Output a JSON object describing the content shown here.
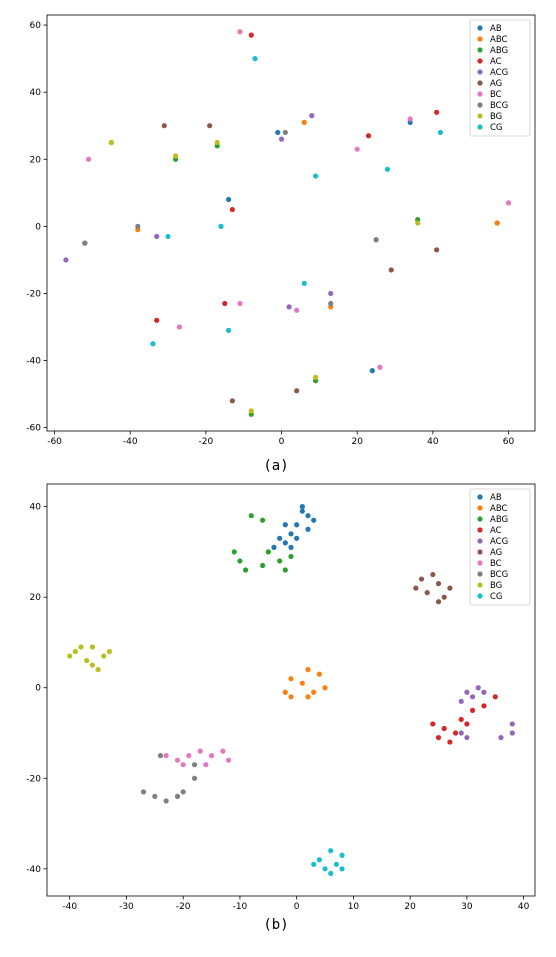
{
  "chart_data": [
    {
      "type": "scatter",
      "caption": "(a)",
      "xlim": [
        -62,
        67
      ],
      "ylim": [
        -61,
        63
      ],
      "xticks": [
        -60,
        -40,
        -20,
        0,
        20,
        40,
        60
      ],
      "yticks": [
        -60,
        -40,
        -20,
        0,
        20,
        40,
        60
      ],
      "grid": false,
      "legend_position": "top-right",
      "series": [
        {
          "name": "AB",
          "color": "#1f77b4",
          "points": [
            [
              -14,
              8
            ],
            [
              -1,
              28
            ],
            [
              34,
              31
            ],
            [
              57,
              1
            ],
            [
              24,
              -43
            ]
          ]
        },
        {
          "name": "ABC",
          "color": "#ff7f0e",
          "points": [
            [
              -52,
              -5
            ],
            [
              -38,
              -1
            ],
            [
              6,
              31
            ],
            [
              13,
              -24
            ],
            [
              25,
              -4
            ],
            [
              9,
              -46
            ],
            [
              57,
              1
            ]
          ]
        },
        {
          "name": "ABG",
          "color": "#2ca02c",
          "points": [
            [
              -45,
              25
            ],
            [
              -28,
              20
            ],
            [
              -17,
              24
            ],
            [
              36,
              2
            ],
            [
              9,
              -46
            ],
            [
              -8,
              -56
            ]
          ]
        },
        {
          "name": "AC",
          "color": "#d62728",
          "points": [
            [
              -8,
              57
            ],
            [
              -13,
              5
            ],
            [
              -15,
              -23
            ],
            [
              -33,
              -28
            ],
            [
              23,
              27
            ],
            [
              41,
              34
            ]
          ]
        },
        {
          "name": "ACG",
          "color": "#9467bd",
          "points": [
            [
              -57,
              -10
            ],
            [
              -33,
              -3
            ],
            [
              0,
              26
            ],
            [
              8,
              33
            ],
            [
              13,
              -20
            ],
            [
              2,
              -24
            ]
          ]
        },
        {
          "name": "AG",
          "color": "#8c564b",
          "points": [
            [
              -31,
              30
            ],
            [
              -19,
              30
            ],
            [
              41,
              -7
            ],
            [
              29,
              -13
            ],
            [
              -13,
              -52
            ],
            [
              4,
              -49
            ]
          ]
        },
        {
          "name": "BC",
          "color": "#e377c2",
          "points": [
            [
              -51,
              20
            ],
            [
              -11,
              58
            ],
            [
              20,
              23
            ],
            [
              34,
              32
            ],
            [
              60,
              7
            ],
            [
              -27,
              -30
            ],
            [
              -11,
              -23
            ],
            [
              4,
              -25
            ],
            [
              26,
              -42
            ]
          ]
        },
        {
          "name": "BCG",
          "color": "#7f7f7f",
          "points": [
            [
              -52,
              -5
            ],
            [
              -38,
              0
            ],
            [
              1,
              28
            ],
            [
              13,
              -23
            ],
            [
              25,
              -4
            ]
          ]
        },
        {
          "name": "BG",
          "color": "#bcbd22",
          "points": [
            [
              -45,
              25
            ],
            [
              -28,
              21
            ],
            [
              -17,
              25
            ],
            [
              36,
              1
            ],
            [
              9,
              -45
            ],
            [
              -8,
              -55
            ]
          ]
        },
        {
          "name": "CG",
          "color": "#17becf",
          "points": [
            [
              -7,
              50
            ],
            [
              9,
              15
            ],
            [
              28,
              17
            ],
            [
              42,
              28
            ],
            [
              -30,
              -3
            ],
            [
              -16,
              0
            ],
            [
              6,
              -17
            ],
            [
              -14,
              -31
            ],
            [
              -34,
              -35
            ]
          ]
        }
      ]
    },
    {
      "type": "scatter",
      "caption": "(b)",
      "xlim": [
        -44,
        42
      ],
      "ylim": [
        -46,
        45
      ],
      "xticks": [
        -40,
        -30,
        -20,
        -10,
        0,
        10,
        20,
        30,
        40
      ],
      "yticks": [
        -40,
        -20,
        0,
        20,
        40
      ],
      "grid": false,
      "legend_position": "top-right",
      "series": [
        {
          "name": "AB",
          "color": "#1f77b4",
          "points": [
            [
              1,
              40
            ],
            [
              2,
              38
            ],
            [
              0,
              36
            ],
            [
              -1,
              34
            ],
            [
              -2,
              32
            ],
            [
              -4,
              31
            ],
            [
              0,
              33
            ],
            [
              3,
              37
            ],
            [
              1,
              39
            ],
            [
              -3,
              33
            ],
            [
              -1,
              31
            ],
            [
              2,
              35
            ],
            [
              -2,
              36
            ]
          ]
        },
        {
          "name": "ABC",
          "color": "#ff7f0e",
          "points": [
            [
              2,
              4
            ],
            [
              4,
              3
            ],
            [
              5,
              0
            ],
            [
              1,
              1
            ],
            [
              -1,
              2
            ],
            [
              -2,
              -1
            ],
            [
              -1,
              -2
            ],
            [
              3,
              -1
            ],
            [
              2,
              -2
            ]
          ]
        },
        {
          "name": "ABG",
          "color": "#2ca02c",
          "points": [
            [
              -11,
              30
            ],
            [
              -10,
              28
            ],
            [
              -9,
              26
            ],
            [
              -6,
              27
            ],
            [
              -5,
              30
            ],
            [
              -6,
              37
            ],
            [
              -8,
              38
            ],
            [
              -3,
              28
            ],
            [
              -2,
              26
            ],
            [
              -1,
              29
            ]
          ]
        },
        {
          "name": "AC",
          "color": "#d62728",
          "points": [
            [
              24,
              -8
            ],
            [
              26,
              -9
            ],
            [
              27,
              -12
            ],
            [
              29,
              -7
            ],
            [
              31,
              -5
            ],
            [
              33,
              -4
            ],
            [
              35,
              -2
            ],
            [
              28,
              -10
            ],
            [
              30,
              -8
            ],
            [
              25,
              -11
            ]
          ]
        },
        {
          "name": "ACG",
          "color": "#9467bd",
          "points": [
            [
              31,
              -2
            ],
            [
              32,
              0
            ],
            [
              33,
              -1
            ],
            [
              29,
              -3
            ],
            [
              30,
              -1
            ],
            [
              38,
              -8
            ],
            [
              38,
              -10
            ],
            [
              36,
              -11
            ],
            [
              29,
              -10
            ],
            [
              30,
              -11
            ]
          ]
        },
        {
          "name": "AG",
          "color": "#8c564b",
          "points": [
            [
              21,
              22
            ],
            [
              22,
              24
            ],
            [
              23,
              21
            ],
            [
              24,
              25
            ],
            [
              25,
              23
            ],
            [
              26,
              20
            ],
            [
              25,
              19
            ],
            [
              27,
              22
            ]
          ]
        },
        {
          "name": "BC",
          "color": "#e377c2",
          "points": [
            [
              -23,
              -15
            ],
            [
              -21,
              -16
            ],
            [
              -19,
              -15
            ],
            [
              -17,
              -14
            ],
            [
              -15,
              -15
            ],
            [
              -13,
              -14
            ],
            [
              -16,
              -17
            ],
            [
              -20,
              -17
            ],
            [
              -12,
              -16
            ]
          ]
        },
        {
          "name": "BCG",
          "color": "#7f7f7f",
          "points": [
            [
              -24,
              -15
            ],
            [
              -27,
              -23
            ],
            [
              -25,
              -24
            ],
            [
              -23,
              -25
            ],
            [
              -21,
              -24
            ],
            [
              -20,
              -23
            ],
            [
              -18,
              -20
            ],
            [
              -18,
              -17
            ]
          ]
        },
        {
          "name": "BG",
          "color": "#bcbd22",
          "points": [
            [
              -40,
              7
            ],
            [
              -39,
              8
            ],
            [
              -38,
              9
            ],
            [
              -37,
              6
            ],
            [
              -36,
              5
            ],
            [
              -35,
              4
            ],
            [
              -34,
              7
            ],
            [
              -36,
              9
            ],
            [
              -33,
              8
            ]
          ]
        },
        {
          "name": "CG",
          "color": "#17becf",
          "points": [
            [
              4,
              -38
            ],
            [
              5,
              -40
            ],
            [
              6,
              -36
            ],
            [
              7,
              -39
            ],
            [
              8,
              -37
            ],
            [
              6,
              -41
            ],
            [
              3,
              -39
            ],
            [
              8,
              -40
            ]
          ]
        }
      ]
    }
  ]
}
